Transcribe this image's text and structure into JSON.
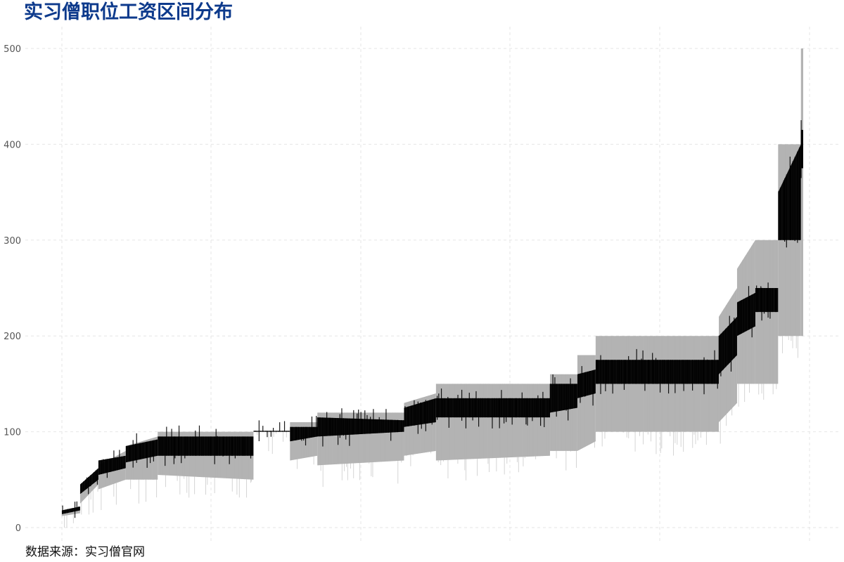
{
  "chart_data": {
    "type": "ribbon-line",
    "title": "实习僧职位工资区间分布",
    "caption": "数据来源：实习僧官网",
    "xlabel": "",
    "ylabel": "",
    "ylim": [
      0,
      500
    ],
    "yticks": [
      0,
      100,
      200,
      300,
      400,
      500
    ],
    "x_tick_labels": [],
    "grid": true,
    "legend": "none",
    "colors": {
      "title": "#0d3a8c",
      "range_band": "#b3b3b3",
      "midline": "#000000",
      "grid": "#e6e6e6",
      "axis_text": "#555555"
    },
    "series": [
      {
        "role": "range_band",
        "segments": [
          {
            "x": [
              0,
              4
            ],
            "low": [
              12,
              15
            ],
            "high": [
              18,
              22
            ]
          },
          {
            "x": [
              4,
              8
            ],
            "low": [
              25,
              45
            ],
            "high": [
              40,
              60
            ]
          },
          {
            "x": [
              8,
              14
            ],
            "low": [
              40,
              50
            ],
            "high": [
              65,
              80
            ]
          },
          {
            "x": [
              14,
              21
            ],
            "low": [
              50,
              50
            ],
            "high": [
              85,
              95
            ]
          },
          {
            "x": [
              21,
              42
            ],
            "low": [
              55,
              50
            ],
            "high": [
              100,
              100
            ]
          },
          {
            "x": [
              42,
              50
            ],
            "low": [
              100,
              100
            ],
            "high": [
              100,
              100
            ]
          },
          {
            "x": [
              50,
              56
            ],
            "low": [
              70,
              75
            ],
            "high": [
              110,
              110
            ]
          },
          {
            "x": [
              56,
              75
            ],
            "low": [
              65,
              70
            ],
            "high": [
              120,
              120
            ]
          },
          {
            "x": [
              75,
              82
            ],
            "low": [
              75,
              80
            ],
            "high": [
              130,
              140
            ]
          },
          {
            "x": [
              82,
              107
            ],
            "low": [
              70,
              75
            ],
            "high": [
              150,
              150
            ]
          },
          {
            "x": [
              107,
              113
            ],
            "low": [
              80,
              80
            ],
            "high": [
              160,
              160
            ]
          },
          {
            "x": [
              113,
              117
            ],
            "low": [
              80,
              90
            ],
            "high": [
              180,
              180
            ]
          },
          {
            "x": [
              117,
              144
            ],
            "low": [
              100,
              100
            ],
            "high": [
              200,
              200
            ]
          },
          {
            "x": [
              144,
              148
            ],
            "low": [
              110,
              130
            ],
            "high": [
              220,
              250
            ]
          },
          {
            "x": [
              148,
              152
            ],
            "low": [
              150,
              150
            ],
            "high": [
              270,
              300
            ]
          },
          {
            "x": [
              152,
              157
            ],
            "low": [
              150,
              150
            ],
            "high": [
              300,
              300
            ]
          },
          {
            "x": [
              157,
              162
            ],
            "low": [
              200,
              200
            ],
            "high": [
              400,
              400
            ]
          },
          {
            "x": [
              162,
              162.5
            ],
            "low": [
              200,
              200
            ],
            "high": [
              500,
              500
            ]
          }
        ]
      },
      {
        "role": "midline",
        "segments": [
          {
            "x": [
              0,
              4
            ],
            "low": [
              14,
              18
            ],
            "high": [
              18,
              22
            ]
          },
          {
            "x": [
              4,
              8
            ],
            "low": [
              35,
              50
            ],
            "high": [
              45,
              62
            ]
          },
          {
            "x": [
              8,
              14
            ],
            "low": [
              55,
              62
            ],
            "high": [
              70,
              75
            ]
          },
          {
            "x": [
              14,
              21
            ],
            "low": [
              68,
              75
            ],
            "high": [
              85,
              92
            ]
          },
          {
            "x": [
              21,
              42
            ],
            "low": [
              75,
              75
            ],
            "high": [
              95,
              95
            ]
          },
          {
            "x": [
              42,
              50
            ],
            "low": [
              100,
              100
            ],
            "high": [
              101,
              101
            ]
          },
          {
            "x": [
              50,
              56
            ],
            "low": [
              90,
              95
            ],
            "high": [
              105,
              105
            ]
          },
          {
            "x": [
              56,
              75
            ],
            "low": [
              95,
              100
            ],
            "high": [
              115,
              112
            ]
          },
          {
            "x": [
              75,
              82
            ],
            "low": [
              105,
              110
            ],
            "high": [
              125,
              135
            ]
          },
          {
            "x": [
              82,
              107
            ],
            "low": [
              115,
              115
            ],
            "high": [
              135,
              135
            ]
          },
          {
            "x": [
              107,
              113
            ],
            "low": [
              120,
              125
            ],
            "high": [
              150,
              150
            ]
          },
          {
            "x": [
              113,
              117
            ],
            "low": [
              135,
              140
            ],
            "high": [
              160,
              165
            ]
          },
          {
            "x": [
              117,
              144
            ],
            "low": [
              150,
              150
            ],
            "high": [
              175,
              175
            ]
          },
          {
            "x": [
              144,
              148
            ],
            "low": [
              160,
              180
            ],
            "high": [
              200,
              220
            ]
          },
          {
            "x": [
              148,
              152
            ],
            "low": [
              200,
              210
            ],
            "high": [
              235,
              245
            ]
          },
          {
            "x": [
              152,
              157
            ],
            "low": [
              225,
              225
            ],
            "high": [
              250,
              250
            ]
          },
          {
            "x": [
              157,
              162
            ],
            "low": [
              300,
              300
            ],
            "high": [
              350,
              400
            ]
          },
          {
            "x": [
              162,
              162.5
            ],
            "low": [
              375,
              375
            ],
            "high": [
              415,
              415
            ]
          }
        ]
      }
    ]
  }
}
